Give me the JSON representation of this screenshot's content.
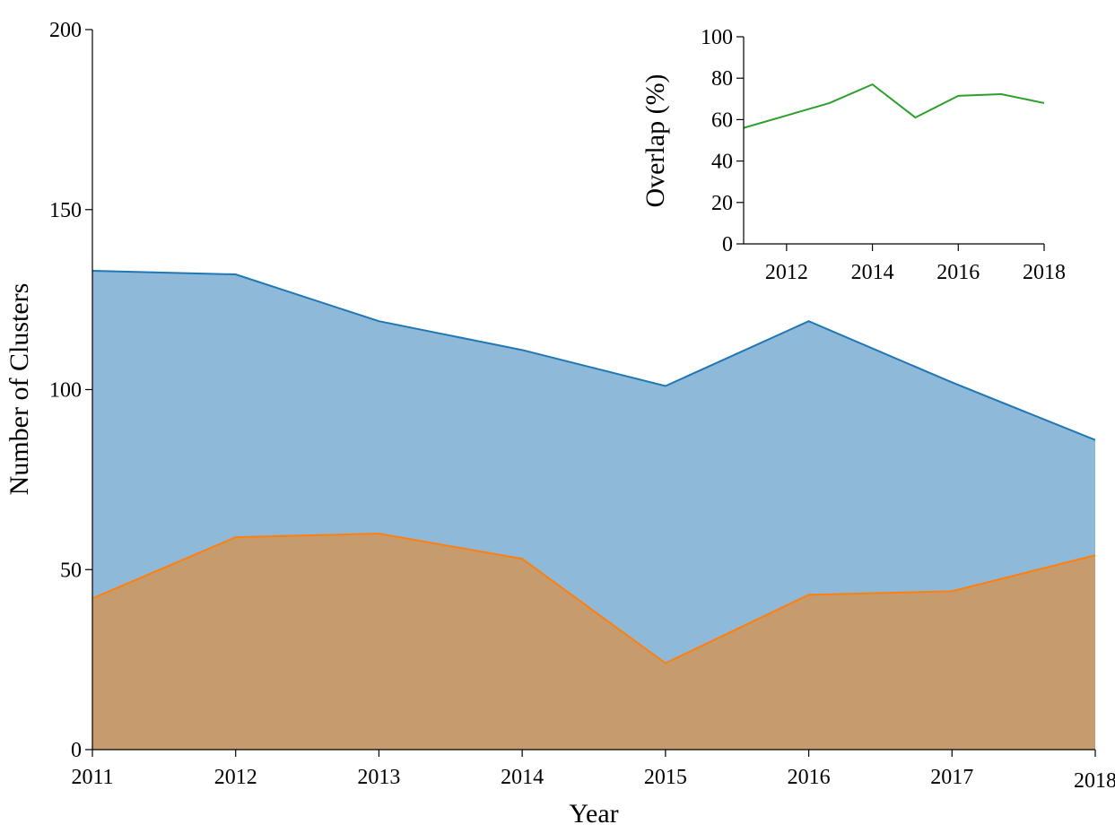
{
  "chart_data": [
    {
      "type": "area",
      "title": "",
      "xlabel": "Year",
      "ylabel": "Number of Clusters",
      "x": [
        2011,
        2012,
        2013,
        2014,
        2015,
        2016,
        2017,
        2018
      ],
      "xticks": [
        "2011",
        "2012",
        "2013",
        "2014",
        "2015",
        "2016",
        "2017",
        "2018"
      ],
      "yticks": [
        "0",
        "50",
        "100",
        "150",
        "200"
      ],
      "xlim": [
        2011,
        2018
      ],
      "ylim": [
        0,
        200
      ],
      "grid": false,
      "series": [
        {
          "values": [
            133,
            132,
            119,
            111,
            101,
            119,
            102,
            86
          ],
          "color": "#1f77b4",
          "fill": "#8fb9d9"
        },
        {
          "values": [
            42,
            59,
            60,
            53,
            24,
            43,
            44,
            54
          ],
          "color": "#ff7f0e",
          "fill": "#c69c6e"
        }
      ]
    },
    {
      "type": "line",
      "title": "",
      "xlabel": "",
      "ylabel": "Overlap (%)",
      "x": [
        2011,
        2012,
        2013,
        2014,
        2015,
        2016,
        2017,
        2018
      ],
      "xticks": [
        "2012",
        "2014",
        "2016",
        "2018"
      ],
      "yticks": [
        "0",
        "20",
        "40",
        "60",
        "80",
        "100"
      ],
      "xlim": [
        2011,
        2018
      ],
      "ylim": [
        0,
        100
      ],
      "grid": false,
      "series": [
        {
          "values": [
            56,
            62,
            68,
            77,
            61,
            71.5,
            72.3,
            68
          ],
          "color": "#2ca02c"
        }
      ]
    }
  ]
}
